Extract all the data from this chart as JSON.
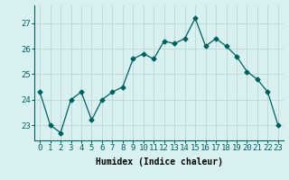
{
  "x": [
    0,
    1,
    2,
    3,
    4,
    5,
    6,
    7,
    8,
    9,
    10,
    11,
    12,
    13,
    14,
    15,
    16,
    17,
    18,
    19,
    20,
    21,
    22,
    23
  ],
  "y": [
    24.3,
    23.0,
    22.7,
    24.0,
    24.3,
    23.2,
    24.0,
    24.3,
    24.5,
    25.6,
    25.8,
    25.6,
    26.3,
    26.2,
    26.4,
    27.2,
    26.1,
    26.4,
    26.1,
    25.7,
    25.1,
    24.8,
    24.3,
    23.0
  ],
  "line_color": "#006060",
  "marker": "D",
  "marker_size": 2.5,
  "bg_color": "#d8f0f0",
  "grid_color": "#c0d8d8",
  "xlabel": "Humidex (Indice chaleur)",
  "ylabel_ticks": [
    23,
    24,
    25,
    26,
    27
  ],
  "ylim": [
    22.4,
    27.7
  ],
  "xlim": [
    -0.5,
    23.5
  ],
  "label_fontsize": 7,
  "tick_fontsize": 6.5
}
